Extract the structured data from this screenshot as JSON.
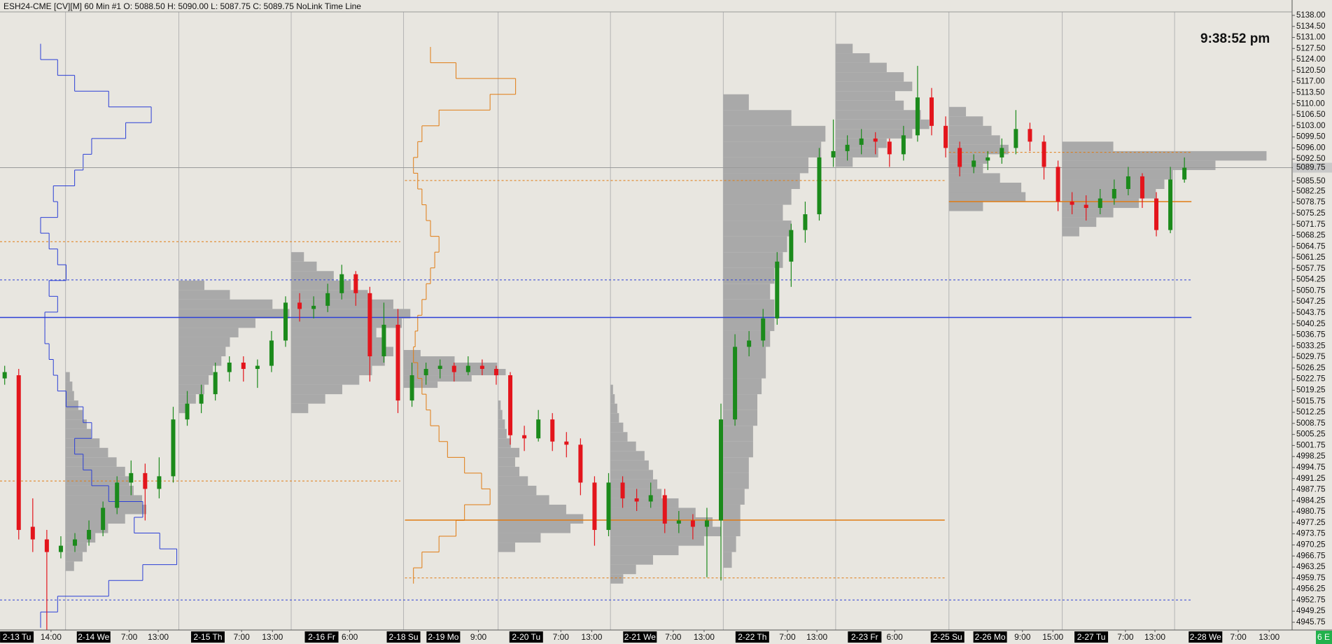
{
  "chart_data": {
    "type": "candlestick",
    "header": "ESH24-CME [CV][M]  60 Min  #1 O: 5088.50 H: 5090.00 L: 5087.75 C: 5089.75 NoLink Time Line",
    "clock": "9:38:52 pm",
    "corner_label": "6 E",
    "up_color": "#1b8a1b",
    "down_color": "#e3151c",
    "profile_color": "#a9a9a9",
    "xlim": [
      0,
      276
    ],
    "ylim": [
      4943.3,
      5139.1
    ],
    "xticks": [
      {
        "value": 3.6,
        "label": "2-13 Tu"
      },
      {
        "value": 10.9,
        "label": "14:00"
      },
      {
        "value": 20,
        "label": "2-14 We"
      },
      {
        "value": 27.6,
        "label": "7:00"
      },
      {
        "value": 33.8,
        "label": "13:00"
      },
      {
        "value": 44.4,
        "label": "2-15 Th"
      },
      {
        "value": 51.6,
        "label": "7:00"
      },
      {
        "value": 58.2,
        "label": "13:00"
      },
      {
        "value": 68.7,
        "label": "2-16 Fr"
      },
      {
        "value": 74.7,
        "label": "6:00"
      },
      {
        "value": 86.2,
        "label": "2-18 Su"
      },
      {
        "value": 94.7,
        "label": "2-19 Mo"
      },
      {
        "value": 102.2,
        "label": "9:00"
      },
      {
        "value": 112.4,
        "label": "2-20 Tu"
      },
      {
        "value": 119.8,
        "label": "7:00"
      },
      {
        "value": 126.4,
        "label": "13:00"
      },
      {
        "value": 136.7,
        "label": "2-21 We"
      },
      {
        "value": 143.8,
        "label": "7:00"
      },
      {
        "value": 150.4,
        "label": "13:00"
      },
      {
        "value": 160.7,
        "label": "2-22 Th"
      },
      {
        "value": 168.2,
        "label": "7:00"
      },
      {
        "value": 174.5,
        "label": "13:00"
      },
      {
        "value": 184.7,
        "label": "2-23 Fr"
      },
      {
        "value": 191.1,
        "label": "6:00"
      },
      {
        "value": 202.4,
        "label": "2-25 Su"
      },
      {
        "value": 211.5,
        "label": "2-26 Mo"
      },
      {
        "value": 218.4,
        "label": "9:00"
      },
      {
        "value": 224.9,
        "label": "15:00"
      },
      {
        "value": 233.1,
        "label": "2-27 Tu"
      },
      {
        "value": 240.4,
        "label": "7:00"
      },
      {
        "value": 246.7,
        "label": "13:00"
      },
      {
        "value": 257.5,
        "label": "2-28 We"
      },
      {
        "value": 264.5,
        "label": "7:00"
      },
      {
        "value": 271.1,
        "label": "13:00"
      }
    ],
    "yticks": [
      {
        "value": 5138,
        "label": "5138.00"
      },
      {
        "value": 5134.5,
        "label": "5134.50"
      },
      {
        "value": 5131,
        "label": "5131.00"
      },
      {
        "value": 5127.5,
        "label": "5127.50"
      },
      {
        "value": 5124,
        "label": "5124.00"
      },
      {
        "value": 5120.5,
        "label": "5120.50"
      },
      {
        "value": 5117,
        "label": "5117.00"
      },
      {
        "value": 5113.5,
        "label": "5113.50"
      },
      {
        "value": 5110,
        "label": "5110.00"
      },
      {
        "value": 5106.5,
        "label": "5106.50"
      },
      {
        "value": 5103,
        "label": "5103.00"
      },
      {
        "value": 5099.5,
        "label": "5099.50"
      },
      {
        "value": 5096,
        "label": "5096.00"
      },
      {
        "value": 5092.5,
        "label": "5092.50"
      },
      5089.75,
      {
        "value": 5085.5,
        "label": "5085.50"
      },
      5082.25,
      5078.75,
      5075.25,
      5071.75,
      5068.25,
      5064.75,
      5061.25,
      5057.75,
      5054.25,
      5050.75,
      5047.25,
      5043.75,
      5040.25,
      5036.75,
      5033.25,
      5029.75,
      5026.25,
      5022.75,
      5019.25,
      5015.75,
      5012.25,
      5008.75,
      5005.25,
      5001.75,
      4998.25,
      4994.75,
      4991.25,
      4987.75,
      4984.25,
      4980.75,
      4977.25,
      4973.75,
      4970.25,
      4966.75,
      4963.25,
      4959.75,
      4956.25,
      4952.75,
      4949.25,
      4945.75
    ],
    "sessions": [
      14,
      38.2,
      62.2,
      86.2,
      106.4,
      130.4,
      154.5,
      178.5,
      202.7,
      226.9,
      250.9
    ],
    "x": [
      1,
      4,
      7,
      10,
      13,
      16,
      19,
      22,
      25,
      28,
      31,
      34,
      37,
      40,
      43,
      46,
      49,
      52,
      55,
      58,
      61,
      64,
      67,
      70,
      73,
      76,
      79,
      82,
      85,
      88,
      91,
      94,
      97,
      100,
      103,
      106,
      109,
      112,
      115,
      118,
      121,
      124,
      127,
      130,
      133,
      136,
      139,
      142,
      145,
      148,
      151,
      154,
      157,
      160,
      163,
      166,
      169,
      172,
      175,
      178,
      181,
      184,
      187,
      190,
      193,
      196,
      199,
      202,
      205,
      208,
      211,
      214,
      217,
      220,
      223,
      226,
      229,
      232,
      235,
      238,
      241,
      244,
      247,
      250,
      253
    ],
    "ohlc": [
      [
        5023,
        5027,
        5021,
        5025
      ],
      [
        5024,
        5026,
        4972,
        4975
      ],
      [
        4976,
        4985,
        4968,
        4972
      ],
      [
        4972,
        4975,
        4943,
        4968
      ],
      [
        4968,
        4973,
        4966,
        4970
      ],
      [
        4970,
        4974,
        4968,
        4972
      ],
      [
        4972,
        4978,
        4970,
        4975
      ],
      [
        4975,
        4984,
        4973,
        4982
      ],
      [
        4982,
        4992,
        4980,
        4990
      ],
      [
        4990,
        4997,
        4986,
        4993
      ],
      [
        4993,
        4996,
        4978,
        4988
      ],
      [
        4988,
        4998,
        4985,
        4992
      ],
      [
        4992,
        5014,
        4990,
        5010
      ],
      [
        5010,
        5019,
        5008,
        5015
      ],
      [
        5015,
        5021,
        5012,
        5018
      ],
      [
        5018,
        5028,
        5016,
        5025
      ],
      [
        5025,
        5030,
        5022,
        5028
      ],
      [
        5028,
        5030,
        5022,
        5026
      ],
      [
        5026,
        5029,
        5020,
        5027
      ],
      [
        5027,
        5038,
        5025,
        5035
      ],
      [
        5035,
        5049,
        5033,
        5047
      ],
      [
        5047,
        5050,
        5041,
        5045
      ],
      [
        5045,
        5049,
        5042,
        5046
      ],
      [
        5046,
        5053,
        5044,
        5050
      ],
      [
        5050,
        5059,
        5048,
        5056
      ],
      [
        5056,
        5057,
        5046,
        5050
      ],
      [
        5050,
        5052,
        5022,
        5030
      ],
      [
        5030,
        5047,
        5028,
        5040
      ],
      [
        5040,
        5045,
        5012,
        5016
      ],
      [
        5016,
        5028,
        5014,
        5024
      ],
      [
        5024,
        5028,
        5021,
        5026
      ],
      [
        5026,
        5029,
        5023,
        5027
      ],
      [
        5027,
        5028,
        5022,
        5025
      ],
      [
        5025,
        5030,
        5024,
        5027
      ],
      [
        5027,
        5029,
        5024,
        5026
      ],
      [
        5026,
        5027,
        5021,
        5024
      ],
      [
        5024,
        5025,
        5002,
        5005
      ],
      [
        5005,
        5008,
        5000,
        5004
      ],
      [
        5004,
        5013,
        5003,
        5010
      ],
      [
        5010,
        5012,
        5000,
        5003
      ],
      [
        5003,
        5006,
        4998,
        5002
      ],
      [
        5002,
        5004,
        4986,
        4990
      ],
      [
        4990,
        4992,
        4970,
        4975
      ],
      [
        4975,
        4993,
        4973,
        4990
      ],
      [
        4990,
        4992,
        4982,
        4985
      ],
      [
        4985,
        4988,
        4981,
        4984
      ],
      [
        4984,
        4990,
        4982,
        4986
      ],
      [
        4986,
        4988,
        4974,
        4977
      ],
      [
        4977,
        4981,
        4974,
        4978
      ],
      [
        4978,
        4980,
        4972,
        4976
      ],
      [
        4976,
        4982,
        4960,
        4978
      ],
      [
        4978,
        5015,
        4959,
        5010
      ],
      [
        5010,
        5037,
        5008,
        5033
      ],
      [
        5033,
        5038,
        5030,
        5035
      ],
      [
        5035,
        5045,
        5033,
        5042
      ],
      [
        5042,
        5063,
        5040,
        5060
      ],
      [
        5060,
        5072,
        5052,
        5070
      ],
      [
        5070,
        5079,
        5066,
        5075
      ],
      [
        5075,
        5096,
        5073,
        5093
      ],
      [
        5093,
        5105,
        5090,
        5095
      ],
      [
        5095,
        5100,
        5092,
        5097
      ],
      [
        5097,
        5102,
        5094,
        5099
      ],
      [
        5099,
        5101,
        5094,
        5098
      ],
      [
        5098,
        5099,
        5090,
        5094
      ],
      [
        5094,
        5103,
        5092,
        5100
      ],
      [
        5100,
        5122,
        5098,
        5112
      ],
      [
        5112,
        5115,
        5100,
        5103
      ],
      [
        5103,
        5106,
        5093,
        5096
      ],
      [
        5096,
        5098,
        5087,
        5090
      ],
      [
        5090,
        5094,
        5088,
        5092
      ],
      [
        5092,
        5095,
        5089,
        5093
      ],
      [
        5093,
        5099,
        5091,
        5096
      ],
      [
        5096,
        5108,
        5094,
        5102
      ],
      [
        5102,
        5104,
        5095,
        5098
      ],
      [
        5098,
        5100,
        5086,
        5090
      ],
      [
        5090,
        5092,
        5076,
        5079
      ],
      [
        5079,
        5082,
        5075,
        5078
      ],
      [
        5078,
        5081,
        5073,
        5077
      ],
      [
        5077,
        5083,
        5075,
        5080
      ],
      [
        5080,
        5086,
        5078,
        5083
      ],
      [
        5083,
        5090,
        5081,
        5087
      ],
      [
        5087,
        5088,
        5077,
        5080
      ],
      [
        5080,
        5082,
        5068,
        5070
      ],
      [
        5070,
        5090,
        5069,
        5086
      ],
      [
        5086,
        5093,
        5085,
        5089.75
      ]
    ],
    "profiles": [
      {
        "x": 14,
        "low": 4962,
        "step": 3,
        "volumes": [
          10,
          20,
          25,
          35,
          50,
          70,
          95,
          90,
          80,
          75,
          70,
          60,
          50,
          40,
          30,
          25,
          20,
          15,
          10,
          8,
          5
        ]
      },
      {
        "x": 38.2,
        "low": 5012,
        "step": 3,
        "volumes": [
          10,
          20,
          30,
          35,
          40,
          50,
          55,
          60,
          70,
          90,
          130,
          110,
          60,
          30
        ]
      },
      {
        "x": 62.2,
        "low": 5012,
        "step": 3,
        "volumes": [
          20,
          40,
          60,
          80,
          95,
          110,
          120,
          110,
          100,
          130,
          140,
          120,
          90,
          70,
          50,
          30,
          15
        ]
      },
      {
        "x": 86.2,
        "low": 5020,
        "step": 2,
        "volumes": [
          40,
          80,
          120,
          110,
          60,
          20
        ]
      },
      {
        "x": 106.4,
        "low": 4968,
        "step": 3,
        "volumes": [
          20,
          50,
          85,
          100,
          80,
          60,
          45,
          35,
          25,
          20,
          25,
          15,
          10,
          8,
          5,
          3
        ]
      },
      {
        "x": 130.4,
        "low": 4958,
        "step": 3,
        "volumes": [
          15,
          30,
          50,
          80,
          110,
          130,
          120,
          100,
          80,
          60,
          55,
          50,
          45,
          40,
          30,
          20,
          15,
          10,
          8,
          5,
          3
        ]
      },
      {
        "x": 154.5,
        "low": 4963,
        "step": 5,
        "volumes": [
          10,
          15,
          20,
          20,
          25,
          30,
          30,
          35,
          35,
          40,
          40,
          45,
          50,
          50,
          55,
          60,
          60,
          55,
          60,
          70,
          75,
          80,
          70,
          80,
          90,
          100,
          115,
          120,
          80,
          30
        ]
      },
      {
        "x": 178.5,
        "low": 5090,
        "step": 3,
        "volumes": [
          20,
          50,
          60,
          90,
          110,
          100,
          80,
          70,
          90,
          80,
          60,
          40,
          20
        ]
      },
      {
        "x": 202.7,
        "low": 5076,
        "step": 3,
        "volumes": [
          40,
          90,
          85,
          60,
          40,
          45,
          70,
          60,
          50,
          40,
          20
        ]
      },
      {
        "x": 226.9,
        "low": 5068,
        "step": 3,
        "volumes": [
          20,
          40,
          60,
          90,
          110,
          120,
          130,
          180,
          240,
          60
        ]
      }
    ],
    "outline_profiles": [
      {
        "x": 1.4,
        "color": "#2b3fd6",
        "low": 4944,
        "step": 5,
        "volumes": [
          40,
          60,
          120,
          160,
          200,
          180,
          150,
          160,
          120,
          100,
          90,
          80,
          100,
          90,
          70,
          60,
          55,
          50,
          45,
          45,
          60,
          50,
          70,
          60,
          50,
          40,
          60,
          55,
          80,
          90,
          100,
          140,
          170,
          120,
          80,
          60,
          40
        ]
      },
      {
        "x": 86.5,
        "color": "#e07b12",
        "low": 4958,
        "step": 5,
        "volumes": [
          10,
          20,
          40,
          60,
          70,
          100,
          90,
          70,
          50,
          40,
          30,
          25,
          20,
          15,
          10,
          12,
          15,
          20,
          25,
          30,
          35,
          40,
          30,
          25,
          20,
          15,
          10,
          15,
          20,
          40,
          100,
          130,
          60,
          30
        ]
      }
    ],
    "levels": [
      {
        "price": 5042.3,
        "color": "#2b3fd6",
        "style": "solid",
        "x": [
          0,
          254.5
        ]
      },
      {
        "price": 5054.2,
        "color": "#2b3fd6",
        "style": "dashed",
        "x": [
          0,
          254.5
        ]
      },
      {
        "price": 4952.8,
        "color": "#2b3fd6",
        "style": "dashed",
        "x": [
          0,
          254.5
        ]
      },
      {
        "price": 5066.3,
        "color": "#e07b12",
        "style": "dashed",
        "x": [
          0,
          85.5
        ]
      },
      {
        "price": 4990.5,
        "color": "#e07b12",
        "style": "dashed",
        "x": [
          0,
          85.5
        ]
      },
      {
        "price": 4978.1,
        "color": "#e07b12",
        "style": "solid",
        "x": [
          86.5,
          201.8
        ]
      },
      {
        "price": 5085.7,
        "color": "#e07b12",
        "style": "dashed",
        "x": [
          86.5,
          201.8
        ]
      },
      {
        "price": 4959.8,
        "color": "#e07b12",
        "style": "dashed",
        "x": [
          86.5,
          201.8
        ]
      },
      {
        "price": 5079,
        "color": "#e07b12",
        "style": "solid",
        "x": [
          202.7,
          254.5
        ]
      },
      {
        "price": 5094.6,
        "color": "#e07b12",
        "style": "dashed",
        "x": [
          202.7,
          254.5
        ]
      }
    ]
  }
}
